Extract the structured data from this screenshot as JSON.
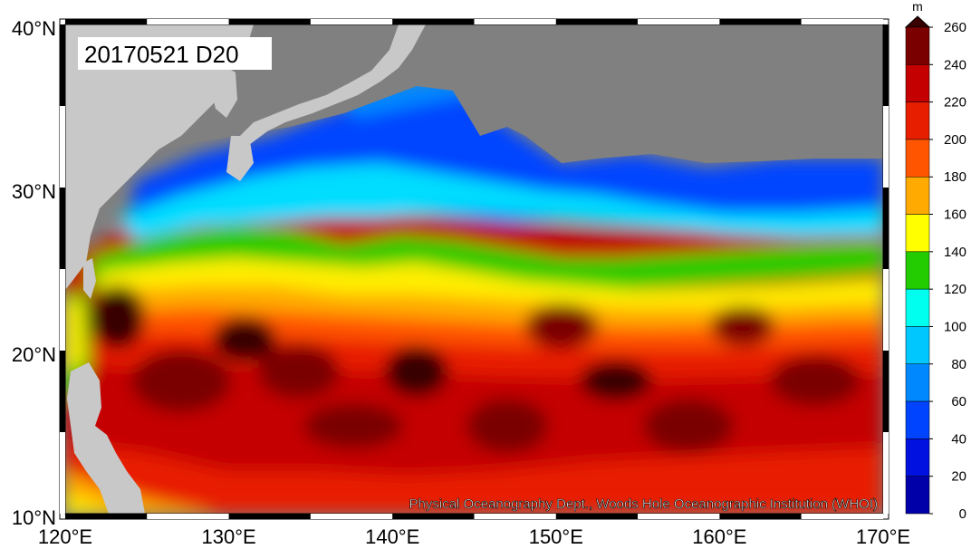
{
  "map": {
    "label": "20170521 D20",
    "credit": "Physical Oceanography Dept., Woods Hole Oceanographic Institution (WHOI)",
    "lat_ticks": [
      "40°N",
      "30°N",
      "20°N",
      "10°N"
    ],
    "lon_ticks": [
      "120°E",
      "130°E",
      "140°E",
      "150°E",
      "160°E",
      "170°E"
    ],
    "lat_values": [
      40,
      30,
      20,
      10
    ],
    "lon_values": [
      120,
      130,
      140,
      150,
      160,
      170
    ],
    "land_color": "#808080",
    "continent_color": "#c8c8c8"
  },
  "colorbar": {
    "unit": "m",
    "labels": [
      "260",
      "240",
      "220",
      "200",
      "180",
      "160",
      "140",
      "120",
      "100",
      "80",
      "60",
      "40",
      "20",
      "0"
    ],
    "colors": [
      "#380000",
      "#7a0000",
      "#c40000",
      "#e81e00",
      "#ff5500",
      "#ffaa00",
      "#ffff00",
      "#22cc00",
      "#00ffee",
      "#00c8ff",
      "#0088ff",
      "#0044ff",
      "#0011e0",
      "#0000a8"
    ]
  }
}
